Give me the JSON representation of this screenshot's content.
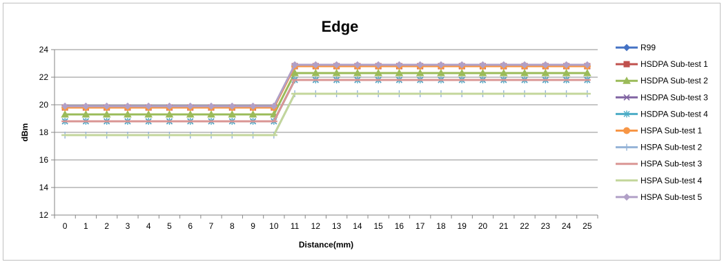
{
  "chart_data": {
    "type": "line",
    "title": "Edge",
    "xlabel": "Distance(mm)",
    "ylabel": "dBm",
    "categories": [
      "0",
      "1",
      "2",
      "3",
      "4",
      "5",
      "6",
      "7",
      "8",
      "9",
      "10",
      "11",
      "12",
      "13",
      "14",
      "15",
      "16",
      "17",
      "18",
      "19",
      "20",
      "21",
      "22",
      "23",
      "24",
      "25"
    ],
    "ylim": [
      12,
      24
    ],
    "yticks": [
      12,
      14,
      16,
      18,
      20,
      22,
      24
    ],
    "grid": true,
    "legend_position": "right",
    "series": [
      {
        "name": "R99",
        "color": "#4472c4",
        "marker": "diamond",
        "values": [
          19.8,
          19.8,
          19.8,
          19.8,
          19.8,
          19.8,
          19.8,
          19.8,
          19.8,
          19.8,
          19.8,
          22.8,
          22.8,
          22.8,
          22.8,
          22.8,
          22.8,
          22.8,
          22.8,
          22.8,
          22.8,
          22.8,
          22.8,
          22.8,
          22.8,
          22.8
        ]
      },
      {
        "name": "HSDPA Sub-test 1",
        "color": "#c0504d",
        "marker": "square",
        "values": [
          19.8,
          19.8,
          19.8,
          19.8,
          19.8,
          19.8,
          19.8,
          19.8,
          19.8,
          19.8,
          19.8,
          22.8,
          22.8,
          22.8,
          22.8,
          22.8,
          22.8,
          22.8,
          22.8,
          22.8,
          22.8,
          22.8,
          22.8,
          22.8,
          22.8,
          22.8
        ]
      },
      {
        "name": "HSDPA Sub-test 2",
        "color": "#9bbb59",
        "marker": "triangle",
        "values": [
          19.3,
          19.3,
          19.3,
          19.3,
          19.3,
          19.3,
          19.3,
          19.3,
          19.3,
          19.3,
          19.3,
          22.3,
          22.3,
          22.3,
          22.3,
          22.3,
          22.3,
          22.3,
          22.3,
          22.3,
          22.3,
          22.3,
          22.3,
          22.3,
          22.3,
          22.3
        ]
      },
      {
        "name": "HSDPA Sub-test 3",
        "color": "#8064a2",
        "marker": "x",
        "values": [
          18.8,
          18.8,
          18.8,
          18.8,
          18.8,
          18.8,
          18.8,
          18.8,
          18.8,
          18.8,
          18.8,
          21.8,
          21.8,
          21.8,
          21.8,
          21.8,
          21.8,
          21.8,
          21.8,
          21.8,
          21.8,
          21.8,
          21.8,
          21.8,
          21.8,
          21.8
        ]
      },
      {
        "name": "HSDPA Sub-test 4",
        "color": "#4bacc6",
        "marker": "asterisk",
        "values": [
          18.8,
          18.8,
          18.8,
          18.8,
          18.8,
          18.8,
          18.8,
          18.8,
          18.8,
          18.8,
          18.8,
          21.8,
          21.8,
          21.8,
          21.8,
          21.8,
          21.8,
          21.8,
          21.8,
          21.8,
          21.8,
          21.8,
          21.8,
          21.8,
          21.8,
          21.8
        ]
      },
      {
        "name": "HSPA Sub-test 1",
        "color": "#f79646",
        "marker": "circle",
        "values": [
          19.8,
          19.8,
          19.8,
          19.8,
          19.8,
          19.8,
          19.8,
          19.8,
          19.8,
          19.8,
          19.8,
          22.8,
          22.8,
          22.8,
          22.8,
          22.8,
          22.8,
          22.8,
          22.8,
          22.8,
          22.8,
          22.8,
          22.8,
          22.8,
          22.8,
          22.8
        ]
      },
      {
        "name": "HSPA Sub-test 2",
        "color": "#95b3d7",
        "marker": "plus",
        "values": [
          17.8,
          17.8,
          17.8,
          17.8,
          17.8,
          17.8,
          17.8,
          17.8,
          17.8,
          17.8,
          17.8,
          20.8,
          20.8,
          20.8,
          20.8,
          20.8,
          20.8,
          20.8,
          20.8,
          20.8,
          20.8,
          20.8,
          20.8,
          20.8,
          20.8,
          20.8
        ]
      },
      {
        "name": "HSPA Sub-test 3",
        "color": "#da9694",
        "marker": "dash",
        "values": [
          18.8,
          18.8,
          18.8,
          18.8,
          18.8,
          18.8,
          18.8,
          18.8,
          18.8,
          18.8,
          18.8,
          21.8,
          21.8,
          21.8,
          21.8,
          21.8,
          21.8,
          21.8,
          21.8,
          21.8,
          21.8,
          21.8,
          21.8,
          21.8,
          21.8,
          21.8
        ]
      },
      {
        "name": "HSPA Sub-test 4",
        "color": "#c3d69b",
        "marker": "dash",
        "values": [
          17.8,
          17.8,
          17.8,
          17.8,
          17.8,
          17.8,
          17.8,
          17.8,
          17.8,
          17.8,
          17.8,
          20.8,
          20.8,
          20.8,
          20.8,
          20.8,
          20.8,
          20.8,
          20.8,
          20.8,
          20.8,
          20.8,
          20.8,
          20.8,
          20.8,
          20.8
        ]
      },
      {
        "name": "HSPA Sub-test 5",
        "color": "#b1a0c7",
        "marker": "diamond",
        "values": [
          19.9,
          19.9,
          19.9,
          19.9,
          19.9,
          19.9,
          19.9,
          19.9,
          19.9,
          19.9,
          19.9,
          22.9,
          22.9,
          22.9,
          22.9,
          22.9,
          22.9,
          22.9,
          22.9,
          22.9,
          22.9,
          22.9,
          22.9,
          22.9,
          22.9,
          22.9
        ]
      }
    ]
  }
}
